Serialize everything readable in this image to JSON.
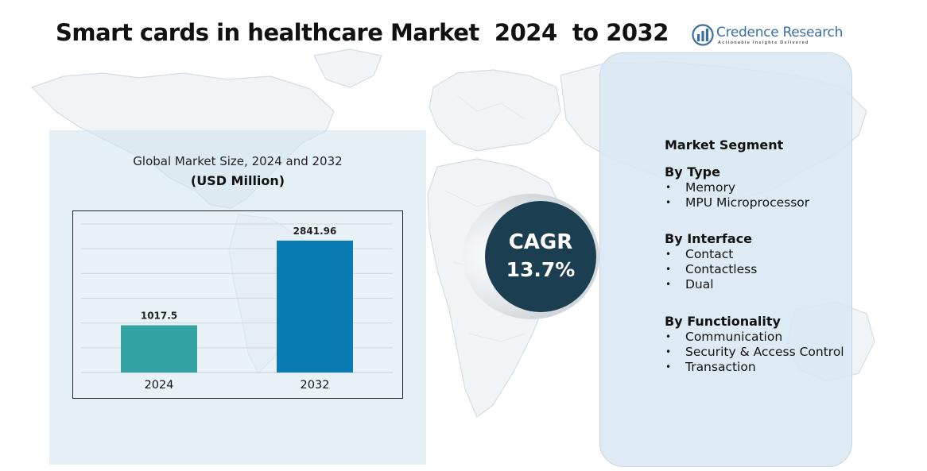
{
  "header": {
    "title": "Smart cards in healthcare Market  2024  to 2032",
    "brand_name": "Credence Research",
    "brand_tagline": "Actionable Insights Delivered"
  },
  "colors": {
    "bar_2024": "#33a3a3",
    "bar_2032": "#0a7ab2",
    "cagr_circle": "#1b3e50",
    "panel_bg": "#cee2ee",
    "brand": "#3a6fa6"
  },
  "chart_data": {
    "type": "bar",
    "title": "Global Market Size, 2024 and 2032",
    "subtitle": "(USD Million)",
    "categories": [
      "2024",
      "2032"
    ],
    "values": [
      1017.5,
      2841.96
    ],
    "value_labels": [
      "1017.5",
      "2841.96"
    ],
    "ylim": [
      0,
      3200
    ],
    "grid": true,
    "legend": "none"
  },
  "cagr": {
    "label": "CAGR",
    "value": "13.7%"
  },
  "segments": {
    "heading": "Market Segment",
    "groups": [
      {
        "title": "By Type",
        "items": [
          "Memory",
          "MPU Microprocessor"
        ]
      },
      {
        "title": "By Interface",
        "items": [
          "Contact",
          "Contactless",
          "Dual"
        ]
      },
      {
        "title": "By Functionality",
        "items": [
          "Communication",
          "Security & Access Control",
          "Transaction"
        ]
      }
    ]
  }
}
